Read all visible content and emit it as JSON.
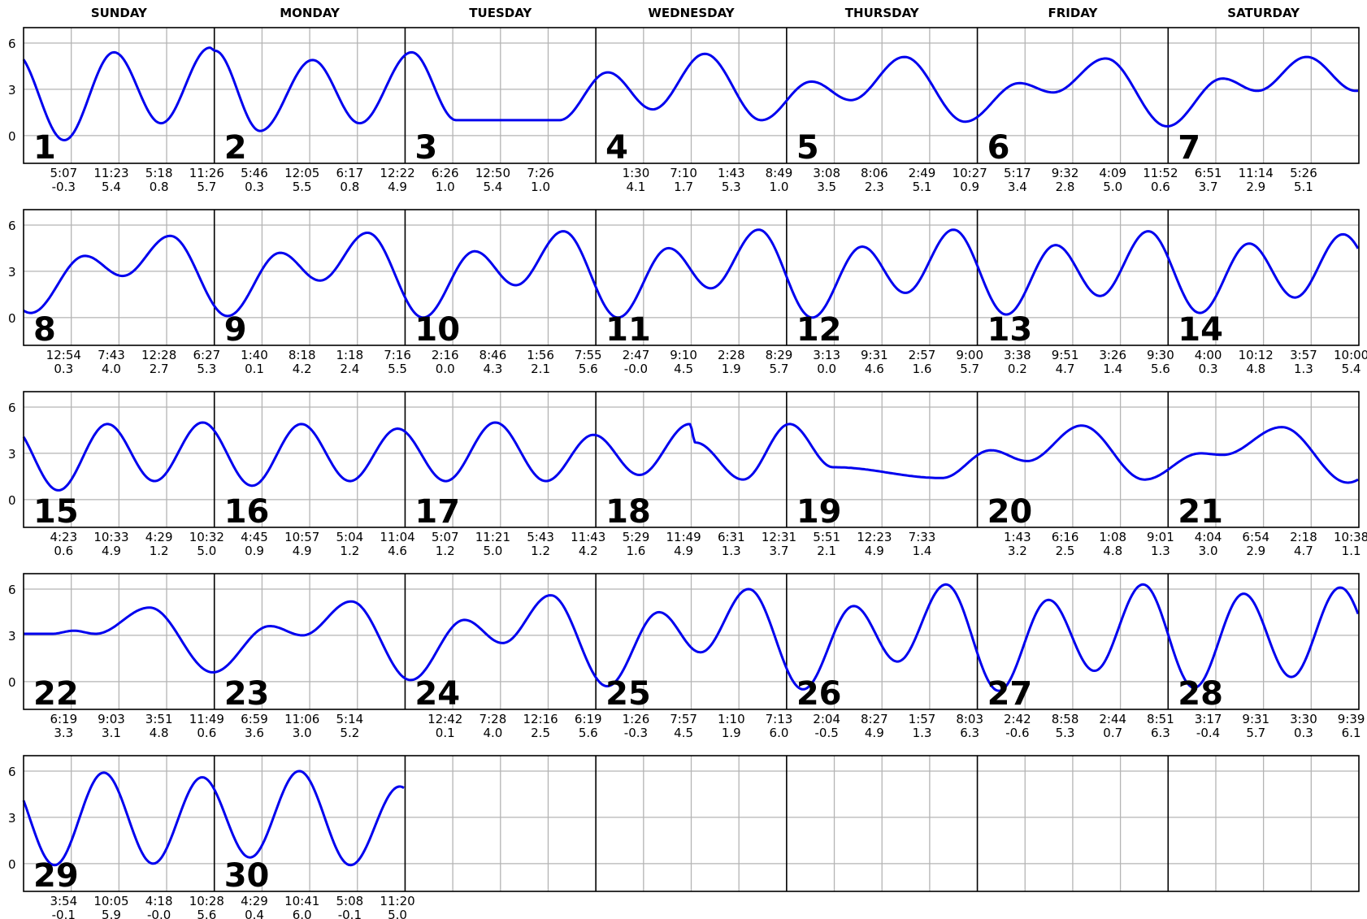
{
  "chart_data": {
    "type": "line",
    "title": "",
    "xlabel": "",
    "ylabel": "",
    "weekday_labels": [
      "SUNDAY",
      "MONDAY",
      "TUESDAY",
      "WEDNESDAY",
      "THURSDAY",
      "FRIDAY",
      "SATURDAY"
    ],
    "y_ticks": [
      "6",
      "3",
      "0"
    ],
    "ylim": [
      -1.8,
      7.0
    ],
    "grid": true,
    "curve_color": "#0000ee",
    "weeks": [
      [
        {
          "day": "1",
          "events": [
            {
              "time": "5:07",
              "height": "-0.3"
            },
            {
              "time": "11:23",
              "height": "5.4"
            },
            {
              "time": "5:18",
              "height": "0.8"
            },
            {
              "time": "11:26",
              "height": "5.7"
            }
          ]
        },
        {
          "day": "2",
          "events": [
            {
              "time": "5:46",
              "height": "0.3"
            },
            {
              "time": "12:05",
              "height": "5.5"
            },
            {
              "time": "6:17",
              "height": "0.8"
            },
            {
              "time": "12:22",
              "height": "4.9"
            }
          ]
        },
        {
          "day": "3",
          "events": [
            {
              "time": "6:26",
              "height": "1.0"
            },
            {
              "time": "12:50",
              "height": "5.4"
            },
            {
              "time": "7:26",
              "height": "1.0"
            }
          ]
        },
        {
          "day": "4",
          "events": [
            {
              "time": "1:30",
              "height": "4.1"
            },
            {
              "time": "7:10",
              "height": "1.7"
            },
            {
              "time": "1:43",
              "height": "5.3"
            },
            {
              "time": "8:49",
              "height": "1.0"
            }
          ]
        },
        {
          "day": "5",
          "events": [
            {
              "time": "3:08",
              "height": "3.5"
            },
            {
              "time": "8:06",
              "height": "2.3"
            },
            {
              "time": "2:49",
              "height": "5.1"
            },
            {
              "time": "10:27",
              "height": "0.9"
            }
          ]
        },
        {
          "day": "6",
          "events": [
            {
              "time": "5:17",
              "height": "3.4"
            },
            {
              "time": "9:32",
              "height": "2.8"
            },
            {
              "time": "4:09",
              "height": "5.0"
            },
            {
              "time": "11:52",
              "height": "0.6"
            }
          ]
        },
        {
          "day": "7",
          "events": [
            {
              "time": "6:51",
              "height": "3.7"
            },
            {
              "time": "11:14",
              "height": "2.9"
            },
            {
              "time": "5:26",
              "height": "5.1"
            }
          ]
        }
      ],
      [
        {
          "day": "8",
          "events": [
            {
              "time": "12:54",
              "height": "0.3"
            },
            {
              "time": "7:43",
              "height": "4.0"
            },
            {
              "time": "12:28",
              "height": "2.7"
            },
            {
              "time": "6:27",
              "height": "5.3"
            }
          ]
        },
        {
          "day": "9",
          "events": [
            {
              "time": "1:40",
              "height": "0.1"
            },
            {
              "time": "8:18",
              "height": "4.2"
            },
            {
              "time": "1:18",
              "height": "2.4"
            },
            {
              "time": "7:16",
              "height": "5.5"
            }
          ]
        },
        {
          "day": "10",
          "events": [
            {
              "time": "2:16",
              "height": "0.0"
            },
            {
              "time": "8:46",
              "height": "4.3"
            },
            {
              "time": "1:56",
              "height": "2.1"
            },
            {
              "time": "7:55",
              "height": "5.6"
            }
          ]
        },
        {
          "day": "11",
          "events": [
            {
              "time": "2:47",
              "height": "-0.0"
            },
            {
              "time": "9:10",
              "height": "4.5"
            },
            {
              "time": "2:28",
              "height": "1.9"
            },
            {
              "time": "8:29",
              "height": "5.7"
            }
          ]
        },
        {
          "day": "12",
          "events": [
            {
              "time": "3:13",
              "height": "0.0"
            },
            {
              "time": "9:31",
              "height": "4.6"
            },
            {
              "time": "2:57",
              "height": "1.6"
            },
            {
              "time": "9:00",
              "height": "5.7"
            }
          ]
        },
        {
          "day": "13",
          "events": [
            {
              "time": "3:38",
              "height": "0.2"
            },
            {
              "time": "9:51",
              "height": "4.7"
            },
            {
              "time": "3:26",
              "height": "1.4"
            },
            {
              "time": "9:30",
              "height": "5.6"
            }
          ]
        },
        {
          "day": "14",
          "events": [
            {
              "time": "4:00",
              "height": "0.3"
            },
            {
              "time": "10:12",
              "height": "4.8"
            },
            {
              "time": "3:57",
              "height": "1.3"
            },
            {
              "time": "10:00",
              "height": "5.4"
            }
          ]
        }
      ],
      [
        {
          "day": "15",
          "events": [
            {
              "time": "4:23",
              "height": "0.6"
            },
            {
              "time": "10:33",
              "height": "4.9"
            },
            {
              "time": "4:29",
              "height": "1.2"
            },
            {
              "time": "10:32",
              "height": "5.0"
            }
          ]
        },
        {
          "day": "16",
          "events": [
            {
              "time": "4:45",
              "height": "0.9"
            },
            {
              "time": "10:57",
              "height": "4.9"
            },
            {
              "time": "5:04",
              "height": "1.2"
            },
            {
              "time": "11:04",
              "height": "4.6"
            }
          ]
        },
        {
          "day": "17",
          "events": [
            {
              "time": "5:07",
              "height": "1.2"
            },
            {
              "time": "11:21",
              "height": "5.0"
            },
            {
              "time": "5:43",
              "height": "1.2"
            },
            {
              "time": "11:43",
              "height": "4.2"
            }
          ]
        },
        {
          "day": "18",
          "events": [
            {
              "time": "5:29",
              "height": "1.6"
            },
            {
              "time": "11:49",
              "height": "4.9"
            },
            {
              "time": "6:31",
              "height": "1.3"
            },
            {
              "time": "12:31",
              "height": "3.7"
            }
          ]
        },
        {
          "day": "19",
          "events": [
            {
              "time": "5:51",
              "height": "2.1"
            },
            {
              "time": "12:23",
              "height": "4.9"
            },
            {
              "time": "7:33",
              "height": "1.4"
            }
          ]
        },
        {
          "day": "20",
          "events": [
            {
              "time": "1:43",
              "height": "3.2"
            },
            {
              "time": "6:16",
              "height": "2.5"
            },
            {
              "time": "1:08",
              "height": "4.8"
            },
            {
              "time": "9:01",
              "height": "1.3"
            }
          ]
        },
        {
          "day": "21",
          "events": [
            {
              "time": "4:04",
              "height": "3.0"
            },
            {
              "time": "6:54",
              "height": "2.9"
            },
            {
              "time": "2:18",
              "height": "4.7"
            },
            {
              "time": "10:38",
              "height": "1.1"
            }
          ]
        }
      ],
      [
        {
          "day": "22",
          "events": [
            {
              "time": "6:19",
              "height": "3.3"
            },
            {
              "time": "9:03",
              "height": "3.1"
            },
            {
              "time": "3:51",
              "height": "4.8"
            },
            {
              "time": "11:49",
              "height": "0.6"
            }
          ]
        },
        {
          "day": "23",
          "events": [
            {
              "time": "6:59",
              "height": "3.6"
            },
            {
              "time": "11:06",
              "height": "3.0"
            },
            {
              "time": "5:14",
              "height": "5.2"
            }
          ]
        },
        {
          "day": "24",
          "events": [
            {
              "time": "12:42",
              "height": "0.1"
            },
            {
              "time": "7:28",
              "height": "4.0"
            },
            {
              "time": "12:16",
              "height": "2.5"
            },
            {
              "time": "6:19",
              "height": "5.6"
            }
          ]
        },
        {
          "day": "25",
          "events": [
            {
              "time": "1:26",
              "height": "-0.3"
            },
            {
              "time": "7:57",
              "height": "4.5"
            },
            {
              "time": "1:10",
              "height": "1.9"
            },
            {
              "time": "7:13",
              "height": "6.0"
            }
          ]
        },
        {
          "day": "26",
          "events": [
            {
              "time": "2:04",
              "height": "-0.5"
            },
            {
              "time": "8:27",
              "height": "4.9"
            },
            {
              "time": "1:57",
              "height": "1.3"
            },
            {
              "time": "8:03",
              "height": "6.3"
            }
          ]
        },
        {
          "day": "27",
          "events": [
            {
              "time": "2:42",
              "height": "-0.6"
            },
            {
              "time": "8:58",
              "height": "5.3"
            },
            {
              "time": "2:44",
              "height": "0.7"
            },
            {
              "time": "8:51",
              "height": "6.3"
            }
          ]
        },
        {
          "day": "28",
          "events": [
            {
              "time": "3:17",
              "height": "-0.4"
            },
            {
              "time": "9:31",
              "height": "5.7"
            },
            {
              "time": "3:30",
              "height": "0.3"
            },
            {
              "time": "9:39",
              "height": "6.1"
            }
          ]
        }
      ],
      [
        {
          "day": "29",
          "events": [
            {
              "time": "3:54",
              "height": "-0.1"
            },
            {
              "time": "10:05",
              "height": "5.9"
            },
            {
              "time": "4:18",
              "height": "-0.0"
            },
            {
              "time": "10:28",
              "height": "5.6"
            }
          ]
        },
        {
          "day": "30",
          "events": [
            {
              "time": "4:29",
              "height": "0.4"
            },
            {
              "time": "10:41",
              "height": "6.0"
            },
            {
              "time": "5:08",
              "height": "-0.1"
            },
            {
              "time": "11:20",
              "height": "5.0"
            }
          ]
        }
      ]
    ]
  }
}
